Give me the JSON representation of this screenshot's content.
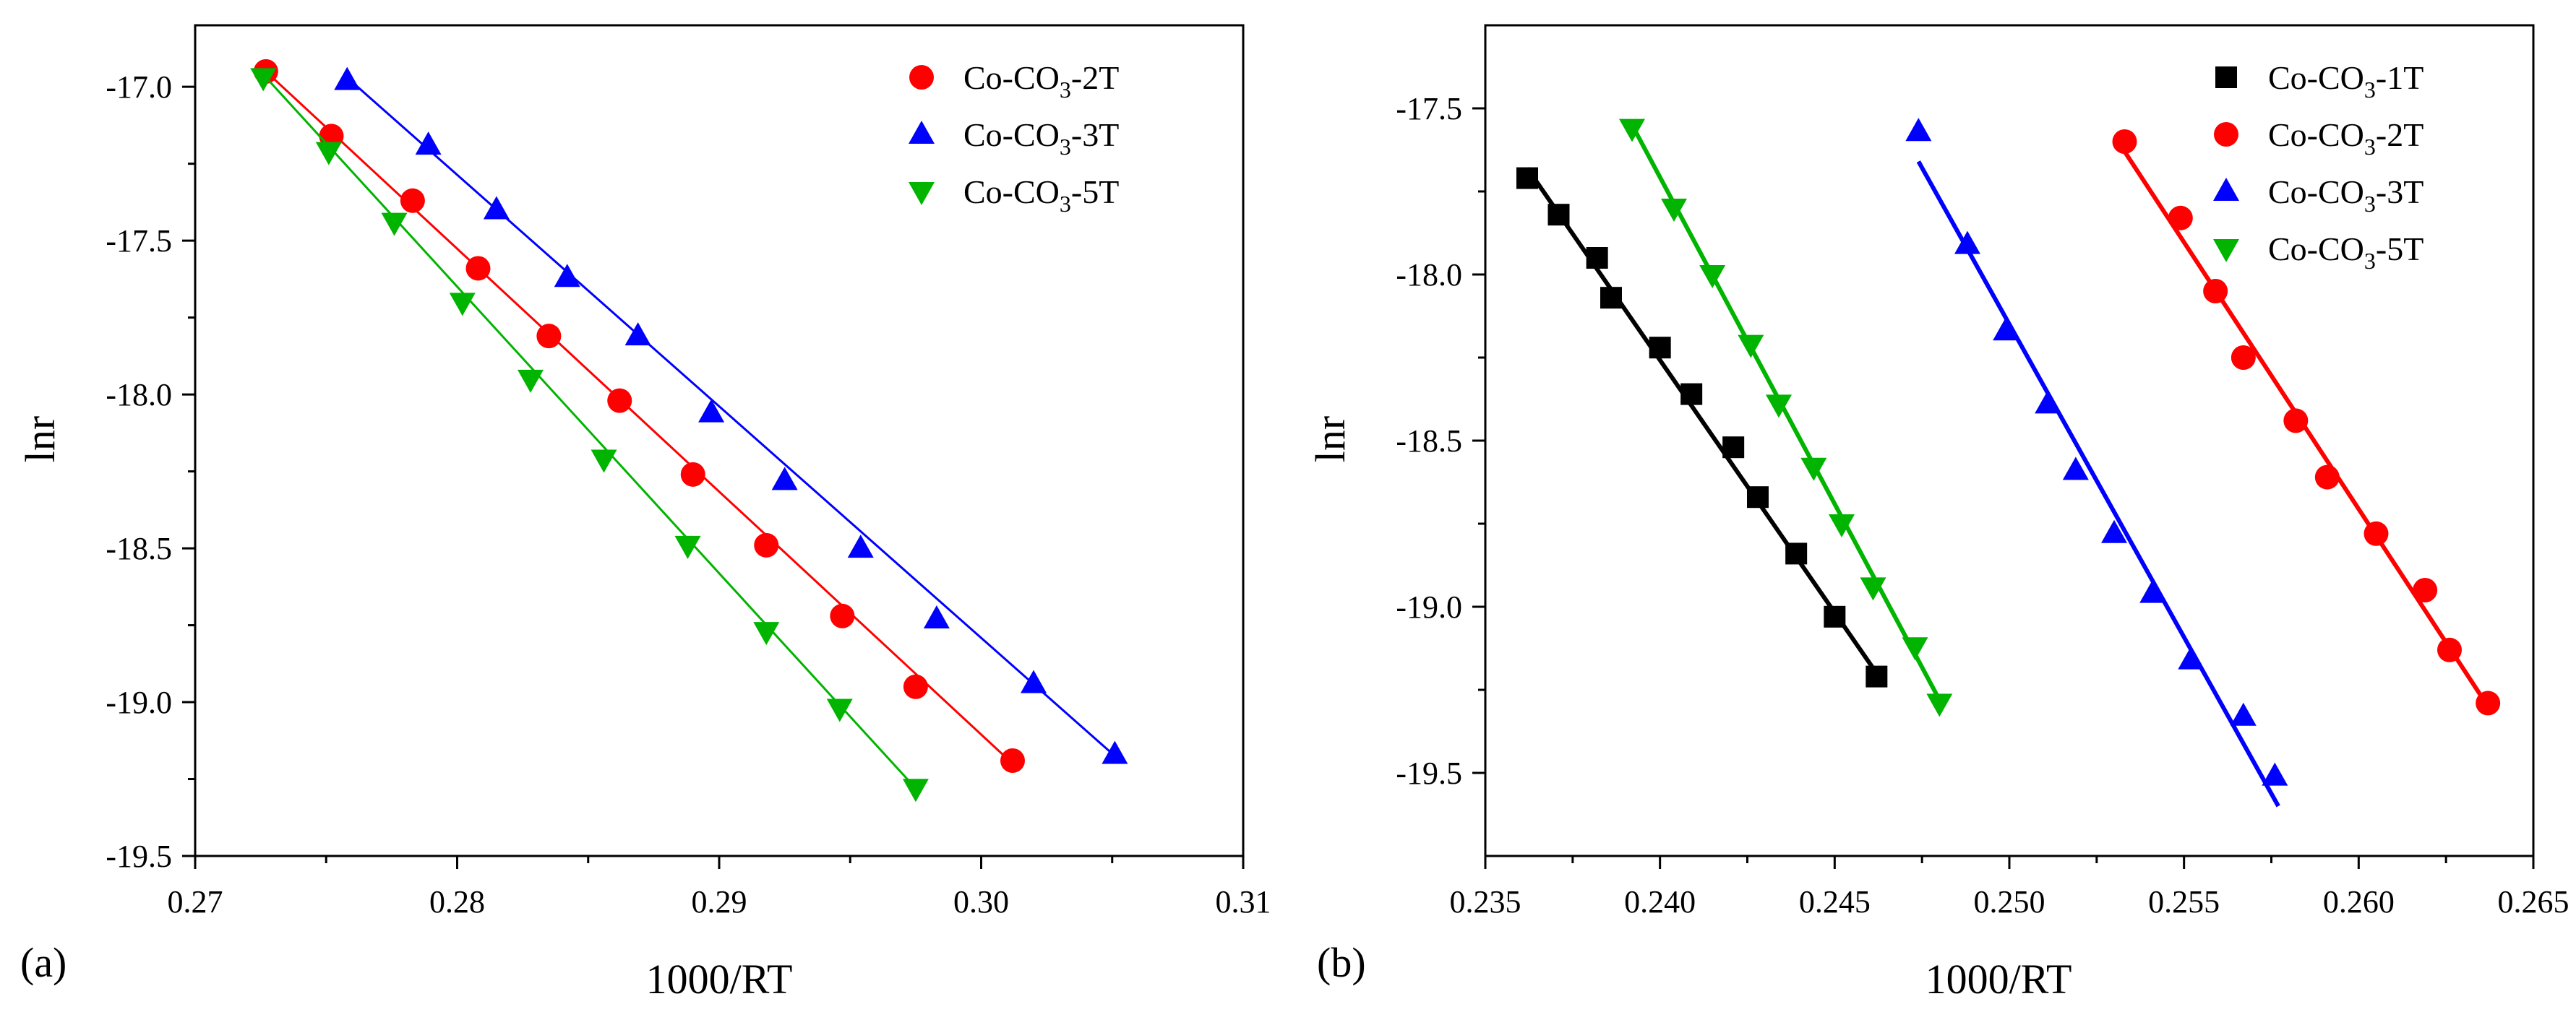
{
  "chart_data": [
    {
      "type": "scatter",
      "panel_label": "(a)",
      "xlabel": "1000/RT",
      "ylabel": "lnr",
      "xlim": [
        0.27,
        0.31
      ],
      "ylim": [
        -19.5,
        -16.8
      ],
      "xticks": [
        "0.27",
        "0.28",
        "0.29",
        "0.30",
        "0.31"
      ],
      "yticks": [
        "-19.5",
        "-19.0",
        "-18.5",
        "-18.0",
        "-17.5",
        "-17.0"
      ],
      "legend_position": "top-right",
      "series": [
        {
          "name": "Co-CO3-2T",
          "label_main": "Co-CO",
          "label_sub": "3",
          "label_tail": "-2T",
          "marker": "circle",
          "color": "#ff0000",
          "x": [
            0.2727,
            0.2752,
            0.2783,
            0.2808,
            0.2835,
            0.2862,
            0.289,
            0.2918,
            0.2947,
            0.2975,
            0.3012
          ],
          "y": [
            -16.95,
            -17.16,
            -17.37,
            -17.59,
            -17.81,
            -18.02,
            -18.26,
            -18.49,
            -18.72,
            -18.95,
            -19.19
          ],
          "fit": [
            [
              0.2727,
              -16.95
            ],
            [
              0.3012,
              -19.2
            ]
          ]
        },
        {
          "name": "Co-CO3-3T",
          "label_main": "Co-CO",
          "label_sub": "3",
          "label_tail": "-3T",
          "marker": "triangle-up",
          "color": "#0000ff",
          "x": [
            0.2758,
            0.2789,
            0.2815,
            0.2842,
            0.2869,
            0.2897,
            0.2925,
            0.2954,
            0.2983,
            0.302,
            0.3051
          ],
          "y": [
            -16.98,
            -17.19,
            -17.4,
            -17.62,
            -17.81,
            -18.06,
            -18.28,
            -18.5,
            -18.73,
            -18.94,
            -19.17
          ],
          "fit": [
            [
              0.2758,
              -16.97
            ],
            [
              0.3053,
              -19.19
            ]
          ]
        },
        {
          "name": "Co-CO3-5T",
          "label_main": "Co-CO",
          "label_sub": "3",
          "label_tail": "-5T",
          "marker": "triangle-down",
          "color": "#00b400",
          "x": [
            0.2726,
            0.2751,
            0.2776,
            0.2802,
            0.2828,
            0.2856,
            0.2888,
            0.2918,
            0.2946,
            0.2975
          ],
          "y": [
            -16.97,
            -17.21,
            -17.44,
            -17.7,
            -17.95,
            -18.21,
            -18.49,
            -18.77,
            -19.02,
            -19.28
          ],
          "fit": [
            [
              0.2726,
              -16.96
            ],
            [
              0.2975,
              -19.28
            ]
          ]
        }
      ]
    },
    {
      "type": "scatter",
      "panel_label": "(b)",
      "xlabel": "1000/RT",
      "ylabel": "lnr",
      "xlim": [
        0.235,
        0.265
      ],
      "ylim": [
        -19.75,
        -17.25
      ],
      "xticks": [
        "0.235",
        "0.240",
        "0.245",
        "0.250",
        "0.255",
        "0.260",
        "0.265"
      ],
      "yticks": [
        "-19.5",
        "-19.0",
        "-18.5",
        "-18.0",
        "-17.5"
      ],
      "legend_position": "top-right",
      "series": [
        {
          "name": "Co-CO3-1T",
          "label_main": "Co-CO",
          "label_sub": "3",
          "label_tail": "-1T",
          "marker": "square",
          "color": "#000000",
          "x": [
            0.2362,
            0.2371,
            0.2382,
            0.2386,
            0.24,
            0.2409,
            0.2421,
            0.2428,
            0.2439,
            0.245,
            0.2462
          ],
          "y": [
            -17.71,
            -17.82,
            -17.95,
            -18.07,
            -18.22,
            -18.36,
            -18.52,
            -18.67,
            -18.84,
            -19.03,
            -19.21
          ],
          "fit": [
            [
              0.2362,
              -17.68
            ],
            [
              0.2462,
              -19.2
            ]
          ]
        },
        {
          "name": "Co-CO3-2T",
          "label_main": "Co-CO",
          "label_sub": "3",
          "label_tail": "-2T",
          "marker": "circle",
          "color": "#ff0000",
          "x": [
            0.2533,
            0.2549,
            0.2559,
            0.2567,
            0.2582,
            0.2591,
            0.2605,
            0.2619,
            0.2626,
            0.2637
          ],
          "y": [
            -17.6,
            -17.83,
            -18.05,
            -18.25,
            -18.44,
            -18.61,
            -18.78,
            -18.95,
            -19.13,
            -19.29
          ],
          "fit": [
            [
              0.2533,
              -17.63
            ],
            [
              0.2637,
              -19.3
            ]
          ]
        },
        {
          "name": "Co-CO3-3T",
          "label_main": "Co-CO",
          "label_sub": "3",
          "label_tail": "-3T",
          "marker": "triangle-up",
          "color": "#0000ff",
          "x": [
            0.2474,
            0.2488,
            0.2499,
            0.2511,
            0.2519,
            0.253,
            0.2541,
            0.2552,
            0.2567,
            0.2576
          ],
          "y": [
            -17.57,
            -17.91,
            -18.17,
            -18.39,
            -18.59,
            -18.78,
            -18.96,
            -19.16,
            -19.33,
            -19.51
          ],
          "fit": [
            [
              0.2474,
              -17.66
            ],
            [
              0.2577,
              -19.6
            ]
          ]
        },
        {
          "name": "Co-CO3-5T",
          "label_main": "Co-CO",
          "label_sub": "3",
          "label_tail": "-5T",
          "marker": "triangle-down",
          "color": "#00b400",
          "x": [
            0.2392,
            0.2404,
            0.2415,
            0.2426,
            0.2434,
            0.2444,
            0.2452,
            0.2461,
            0.2473,
            0.248
          ],
          "y": [
            -17.56,
            -17.8,
            -18.0,
            -18.21,
            -18.39,
            -18.58,
            -18.75,
            -18.94,
            -19.12,
            -19.29
          ],
          "fit": [
            [
              0.2392,
              -17.55
            ],
            [
              0.2481,
              -19.3
            ]
          ]
        }
      ]
    }
  ]
}
